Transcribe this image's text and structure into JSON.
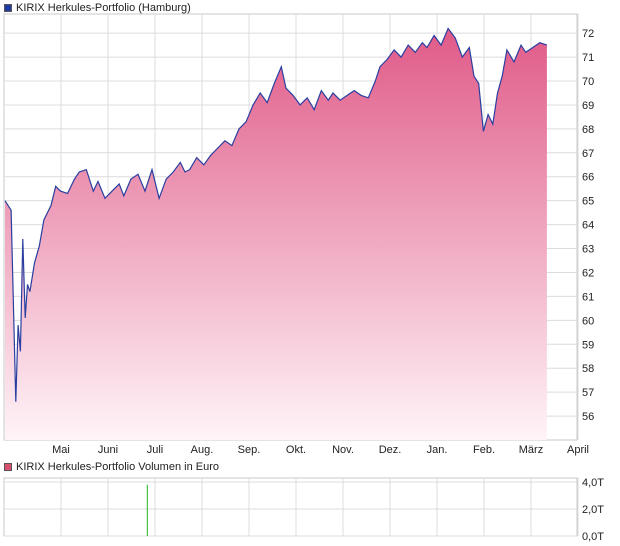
{
  "legend": {
    "price_label": "KIRIX Herkules-Portfolio (Hamburg)",
    "price_color": "#1f3c9e",
    "volume_label": "KIRIX Herkules-Portfolio Volumen in Euro",
    "volume_color": "#d94f6e"
  },
  "colors": {
    "line": "#2a3fa0",
    "fill_top": "#e05a88",
    "fill_bottom": "#fff4f8",
    "grid": "#dcdcdc",
    "volume_bar": "#44c044"
  },
  "chart_data": [
    {
      "type": "area",
      "title": "",
      "xlabel": "",
      "ylabel": "",
      "x_tick_labels": [
        "Mai",
        "Juni",
        "Juli",
        "Aug.",
        "Sep.",
        "Okt.",
        "Nov.",
        "Dez.",
        "Jan.",
        "Feb.",
        "März",
        "April"
      ],
      "y_ticks": [
        56,
        57,
        58,
        59,
        60,
        61,
        62,
        63,
        64,
        65,
        66,
        67,
        68,
        69,
        70,
        71,
        72
      ],
      "y_tick_labels": [
        "56",
        "57",
        "58",
        "59",
        "60",
        "61",
        "62",
        "63",
        "64",
        "65",
        "66",
        "67",
        "68",
        "69",
        "70",
        "71",
        "72"
      ],
      "ylim": [
        55.0,
        72.8
      ],
      "grid": true,
      "series": [
        {
          "name": "KIRIX Herkules-Portfolio (Hamburg)",
          "x_unit": "months since start of visible range (Mai = 1)",
          "x": [
            0.0,
            0.15,
            0.25,
            0.3,
            0.35,
            0.4,
            0.45,
            0.5,
            0.55,
            0.65,
            0.75,
            0.85,
            1.0,
            1.1,
            1.2,
            1.35,
            1.5,
            1.6,
            1.75,
            1.9,
            2.0,
            2.15,
            2.3,
            2.45,
            2.55,
            2.7,
            2.85,
            3.0,
            3.15,
            3.3,
            3.45,
            3.6,
            3.75,
            3.85,
            3.95,
            4.1,
            4.25,
            4.4,
            4.55,
            4.7,
            4.85,
            5.0,
            5.15,
            5.3,
            5.45,
            5.6,
            5.75,
            5.9,
            6.0,
            6.15,
            6.3,
            6.45,
            6.6,
            6.75,
            6.9,
            7.0,
            7.15,
            7.3,
            7.45,
            7.6,
            7.75,
            7.9,
            8.0,
            8.15,
            8.3,
            8.45,
            8.6,
            8.75,
            8.9,
            9.0,
            9.15,
            9.3,
            9.45,
            9.6,
            9.75,
            9.9,
            10.0,
            10.1,
            10.2,
            10.3,
            10.4,
            10.5,
            10.6,
            10.7,
            10.85,
            11.0,
            11.1,
            11.25,
            11.4,
            11.55
          ],
          "values": [
            65.0,
            64.6,
            56.6,
            59.8,
            58.7,
            63.4,
            60.1,
            61.5,
            61.2,
            62.4,
            63.1,
            64.2,
            64.8,
            65.6,
            65.4,
            65.3,
            65.9,
            66.2,
            66.3,
            65.4,
            65.8,
            65.1,
            65.4,
            65.7,
            65.2,
            65.9,
            66.1,
            65.4,
            66.3,
            65.1,
            65.9,
            66.2,
            66.6,
            66.2,
            66.3,
            66.8,
            66.5,
            66.9,
            67.2,
            67.5,
            67.3,
            68.0,
            68.3,
            69.0,
            69.5,
            69.1,
            69.9,
            70.6,
            69.7,
            69.4,
            69.0,
            69.3,
            68.8,
            69.6,
            69.2,
            69.5,
            69.2,
            69.4,
            69.6,
            69.4,
            69.3,
            70.0,
            70.6,
            70.9,
            71.3,
            71.0,
            71.5,
            71.2,
            71.6,
            71.4,
            71.9,
            71.5,
            72.2,
            71.8,
            71.0,
            71.4,
            70.2,
            69.9,
            67.9,
            68.6,
            68.2,
            69.5,
            70.2,
            71.3,
            70.8,
            71.5,
            71.2,
            71.4,
            71.6,
            71.5
          ]
        }
      ]
    },
    {
      "type": "bar",
      "title": "",
      "xlabel": "",
      "ylabel": "",
      "y_ticks": [
        0,
        2,
        4
      ],
      "y_tick_labels": [
        "0,0T",
        "2,0T",
        "4,0T"
      ],
      "ylim": [
        0,
        4.3
      ],
      "grid": true,
      "series": [
        {
          "name": "KIRIX Herkules-Portfolio Volumen in Euro",
          "unit": "thousand EUR (T)",
          "x": [
            3.05
          ],
          "values": [
            3.8
          ]
        }
      ]
    }
  ]
}
